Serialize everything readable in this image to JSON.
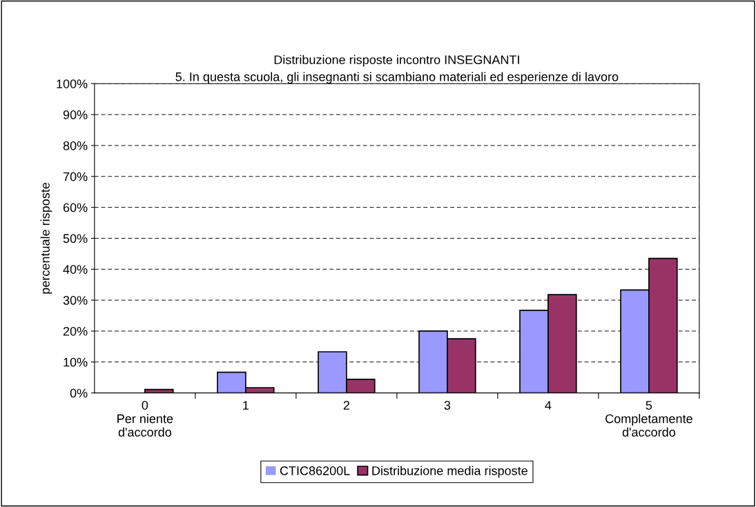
{
  "chart_data": {
    "type": "bar",
    "title": "Distribuzione risposte incontro INSEGNANTI\n5. In questa scuola, gli insegnanti si scambiano materiali ed esperienze di lavoro",
    "ylabel": "percentuale risposte",
    "categories": [
      "0\nPer niente\nd'accordo",
      "1",
      "2",
      "3",
      "4",
      "5\nCompletamente\nd'accordo"
    ],
    "series": [
      {
        "name": "CTIC86200L",
        "color": "#9999ff",
        "values": [
          0,
          6.7,
          13.3,
          20,
          26.7,
          33.3
        ]
      },
      {
        "name": "Distribuzione media risposte",
        "color": "#993366",
        "values": [
          1.1,
          1.7,
          4.4,
          17.5,
          31.8,
          43.5
        ]
      }
    ],
    "ylim": [
      0,
      100
    ],
    "yticks": [
      {
        "value": 0,
        "label": "0%"
      },
      {
        "value": 10,
        "label": "10%"
      },
      {
        "value": 20,
        "label": "20%"
      },
      {
        "value": 30,
        "label": "30%"
      },
      {
        "value": 40,
        "label": "40%"
      },
      {
        "value": 50,
        "label": "50%"
      },
      {
        "value": 60,
        "label": "60%"
      },
      {
        "value": 70,
        "label": "70%"
      },
      {
        "value": 80,
        "label": "80%"
      },
      {
        "value": 90,
        "label": "90%"
      },
      {
        "value": 100,
        "label": "100%"
      }
    ],
    "grid": "y",
    "legend": "bottom"
  }
}
